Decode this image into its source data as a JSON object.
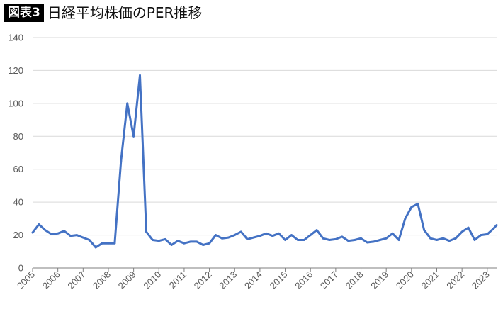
{
  "header": {
    "badge": "図表3",
    "title": "日経平均株価のPER推移"
  },
  "colors": {
    "line": "#4472C4",
    "grid": "#d9d9d9",
    "axis": "#7f7f7f",
    "tick_text": "#595959"
  },
  "chart_data": {
    "type": "line",
    "title": "日経平均株価のPER推移",
    "xlabel": "",
    "ylabel": "",
    "ylim": [
      0,
      140
    ],
    "yticks": [
      0,
      20,
      40,
      60,
      80,
      100,
      120,
      140
    ],
    "xlim": [
      2005,
      2023.37
    ],
    "xticks": [
      "2005",
      "2006",
      "2007",
      "2008",
      "2009",
      "2010",
      "2011",
      "2012",
      "2013",
      "2014",
      "2015",
      "2016",
      "2017",
      "2018",
      "2019",
      "2020",
      "2021",
      "2022",
      "2023"
    ],
    "grid": true,
    "series": [
      {
        "x": [
          2005.0,
          2005.25,
          2005.5,
          2005.75,
          2006.0,
          2006.25,
          2006.5,
          2006.75,
          2007.0,
          2007.25,
          2007.5,
          2007.75,
          2008.0,
          2008.25,
          2008.5,
          2008.75,
          2009.0,
          2009.25,
          2009.5,
          2009.75,
          2010.0,
          2010.25,
          2010.5,
          2010.75,
          2011.0,
          2011.25,
          2011.5,
          2011.75,
          2012.0,
          2012.25,
          2012.5,
          2012.75,
          2013.0,
          2013.25,
          2013.5,
          2013.75,
          2014.0,
          2014.25,
          2014.5,
          2014.75,
          2015.0,
          2015.25,
          2015.5,
          2015.75,
          2016.0,
          2016.25,
          2016.5,
          2016.75,
          2017.0,
          2017.25,
          2017.5,
          2017.75,
          2018.0,
          2018.25,
          2018.5,
          2018.75,
          2019.0,
          2019.25,
          2019.5,
          2019.75,
          2020.0,
          2020.25,
          2020.5,
          2020.75,
          2021.0,
          2021.25,
          2021.5,
          2021.75,
          2022.0,
          2022.25,
          2022.5,
          2022.75,
          2023.0,
          2023.25,
          2023.37
        ],
        "values": [
          21.5,
          26.5,
          23,
          20.5,
          21,
          22.5,
          19.5,
          20,
          18.5,
          17,
          12.5,
          15,
          15,
          15,
          65,
          100,
          80,
          117,
          22,
          17,
          16.5,
          17.5,
          14,
          16.5,
          15,
          16,
          16,
          14,
          15,
          20,
          18,
          18.5,
          20,
          22,
          17.5,
          18.5,
          19.5,
          21,
          19.5,
          21,
          17,
          20,
          17,
          17,
          20,
          23,
          18,
          17,
          17.5,
          19,
          16.5,
          17,
          18,
          15.5,
          16,
          17,
          18,
          21,
          17,
          30,
          37,
          39,
          23,
          18,
          17,
          18,
          16.5,
          18,
          22,
          24.5,
          17,
          20,
          20.5,
          24,
          26
        ]
      }
    ]
  }
}
